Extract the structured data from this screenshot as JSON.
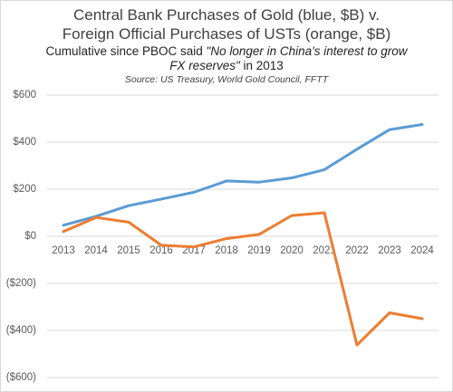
{
  "chart_data": {
    "type": "line",
    "title": [
      "Central Bank Purchases of Gold (blue, $B) v.",
      "Foreign Official Purchases of USTs (orange, $B)"
    ],
    "subtitle": [
      "Cumulative since PBOC said ",
      "\"No longer in China's interest to grow FX reserves\"",
      " in 2013"
    ],
    "source": "Source: US Treasury, World Gold Council, FFTT",
    "categories": [
      "2013",
      "2014",
      "2015",
      "2016",
      "2017",
      "2018",
      "2019",
      "2020",
      "2021",
      "2022",
      "2023",
      "2024"
    ],
    "series": [
      {
        "color": "#5b9bd5",
        "values": [
          47,
          85,
          130,
          158,
          187,
          235,
          230,
          248,
          283,
          370,
          453,
          475
        ]
      },
      {
        "color": "#ed7d31",
        "values": [
          20,
          80,
          60,
          -38,
          -45,
          -10,
          8,
          88,
          100,
          -462,
          -325,
          -350
        ]
      }
    ],
    "ylim": [
      -600,
      600
    ],
    "yticks": [
      {
        "value": 600,
        "label": "$600"
      },
      {
        "value": 400,
        "label": "$400"
      },
      {
        "value": 200,
        "label": "$200"
      },
      {
        "value": 0,
        "label": "$0"
      },
      {
        "value": -200,
        "label": "($200)"
      },
      {
        "value": -400,
        "label": "($400)"
      },
      {
        "value": -600,
        "label": "($600)"
      }
    ],
    "grid": true
  }
}
